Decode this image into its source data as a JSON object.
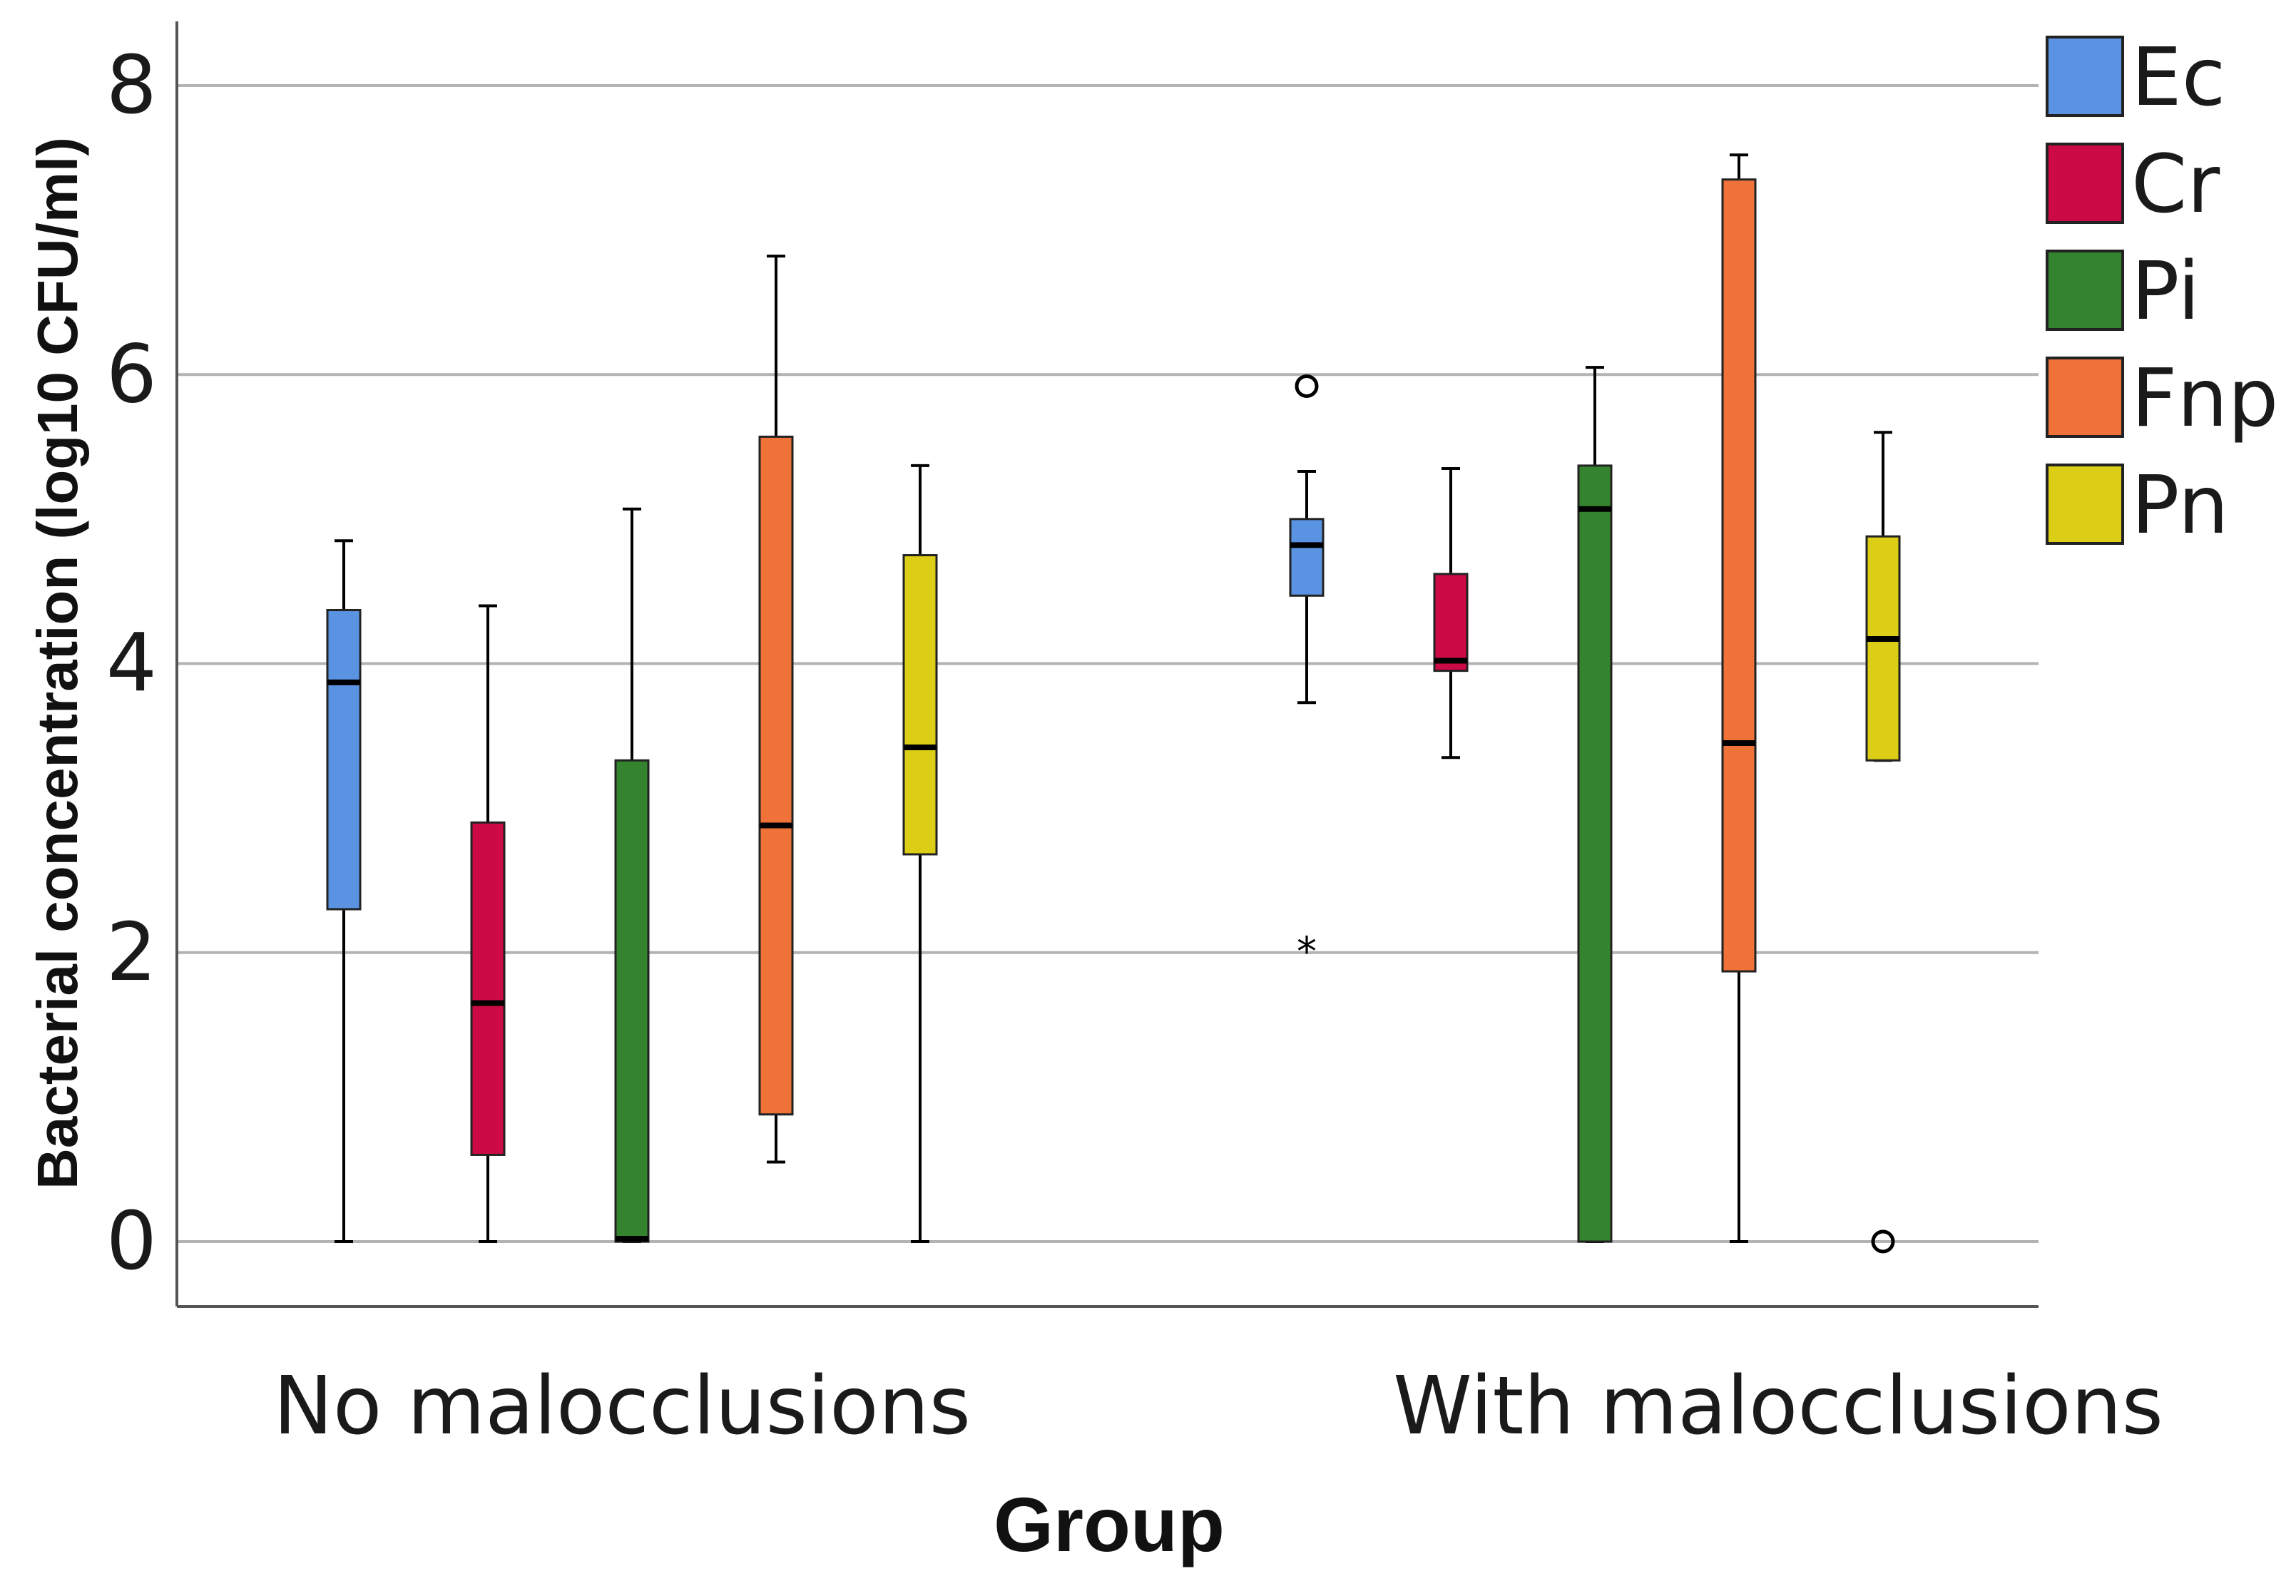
{
  "chart_data": {
    "type": "boxplot",
    "title": "",
    "xlabel": "Group",
    "ylabel": "Bacterial concentration (log10 CFU/ml)",
    "ylim": [
      -0.45,
      8.4
    ],
    "yticks": [
      0,
      2,
      4,
      6,
      8
    ],
    "ytick_labels": [
      "0",
      "2",
      "4",
      "6",
      "8"
    ],
    "gridlines": "horizontal",
    "legend_position": "right",
    "categories": [
      "No malocclusions",
      "With malocclusions"
    ],
    "series": [
      {
        "name": "Ec",
        "color": "#5b93e3",
        "boxes": [
          {
            "whisker_low": 0,
            "q1": 2.3,
            "median": 3.87,
            "q3": 4.37,
            "whisker_high": 4.85,
            "outliers": []
          },
          {
            "whisker_low": 3.73,
            "q1": 4.47,
            "median": 4.82,
            "q3": 5.0,
            "whisker_high": 5.33,
            "outliers": [
              {
                "value": 5.92,
                "marker": "○"
              },
              {
                "value": 2.08,
                "marker": "*"
              }
            ]
          }
        ]
      },
      {
        "name": "Cr",
        "color": "#cc0a45",
        "boxes": [
          {
            "whisker_low": 0,
            "q1": 0.6,
            "median": 1.65,
            "q3": 2.9,
            "whisker_high": 4.4,
            "outliers": []
          },
          {
            "whisker_low": 3.35,
            "q1": 3.95,
            "median": 4.02,
            "q3": 4.62,
            "whisker_high": 5.35,
            "outliers": []
          }
        ]
      },
      {
        "name": "Pi",
        "color": "#34842f",
        "boxes": [
          {
            "whisker_low": 0,
            "q1": 0,
            "median": 0.02,
            "q3": 3.33,
            "whisker_high": 5.07,
            "outliers": []
          },
          {
            "whisker_low": 0,
            "q1": 0,
            "median": 5.07,
            "q3": 5.37,
            "whisker_high": 6.05,
            "outliers": []
          }
        ]
      },
      {
        "name": "Fnp",
        "color": "#ef7339",
        "boxes": [
          {
            "whisker_low": 0.55,
            "q1": 0.88,
            "median": 2.88,
            "q3": 5.57,
            "whisker_high": 6.82,
            "outliers": []
          },
          {
            "whisker_low": 0,
            "q1": 1.87,
            "median": 3.45,
            "q3": 7.35,
            "whisker_high": 7.52,
            "outliers": []
          }
        ]
      },
      {
        "name": "Pn",
        "color": "#dccd16",
        "boxes": [
          {
            "whisker_low": 0,
            "q1": 2.68,
            "median": 3.42,
            "q3": 4.75,
            "whisker_high": 5.37,
            "outliers": []
          },
          {
            "whisker_low": 3.33,
            "q1": 3.33,
            "median": 4.17,
            "q3": 4.88,
            "whisker_high": 5.6,
            "outliers": [
              {
                "value": 0,
                "marker": "○"
              }
            ]
          }
        ]
      }
    ]
  }
}
